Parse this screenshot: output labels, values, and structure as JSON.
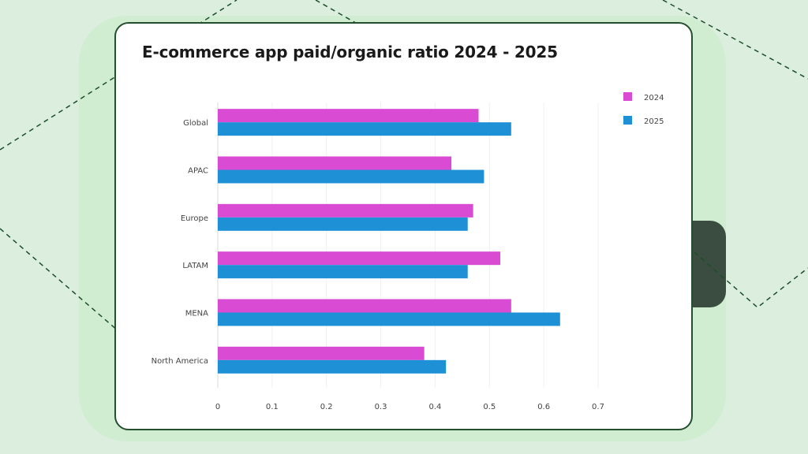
{
  "chart_data": {
    "type": "bar",
    "orientation": "horizontal",
    "title": "E-commerce app paid/organic ratio 2024 - 2025",
    "categories": [
      "Global",
      "APAC",
      "Europe",
      "LATAM",
      "MENA",
      "North America"
    ],
    "series": [
      {
        "name": "2024",
        "color": "#d84bd2",
        "values": [
          0.48,
          0.43,
          0.47,
          0.52,
          0.54,
          0.38
        ]
      },
      {
        "name": "2025",
        "color": "#1e90d6",
        "values": [
          0.54,
          0.49,
          0.46,
          0.46,
          0.63,
          0.42
        ]
      }
    ],
    "xlim": [
      0,
      0.7
    ],
    "xticks": [
      "0",
      "0.1",
      "0.2",
      "0.3",
      "0.4",
      "0.5",
      "0.6",
      "0.7"
    ],
    "grid": true,
    "legend": "top-right"
  }
}
